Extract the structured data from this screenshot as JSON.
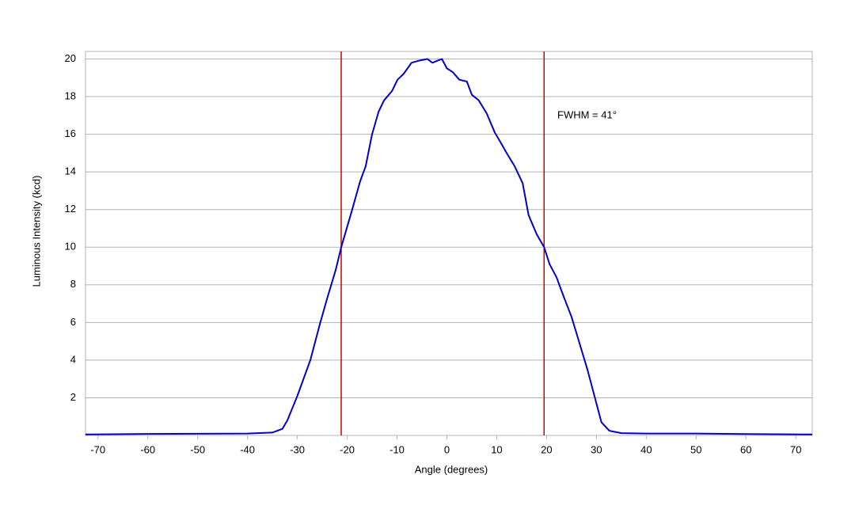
{
  "chart_data": {
    "type": "line",
    "x_label": "Angle (degrees)",
    "y_label": "Luminous Intensity (kcd)",
    "x": [
      -72.5,
      -60,
      -50,
      -40,
      -35,
      -33,
      -32,
      -30,
      -27.4,
      -25.4,
      -24,
      -22.3,
      -21.2,
      -19,
      -17.4,
      -16.3,
      -15,
      -13.7,
      -12.6,
      -11,
      -9.9,
      -8.7,
      -7.1,
      -5.8,
      -3.9,
      -2.9,
      -2,
      -1,
      0,
      1.2,
      2.5,
      4,
      5,
      6.4,
      8,
      9.6,
      10.7,
      12,
      13.6,
      15.2,
      16.4,
      18,
      19.5,
      20.6,
      22,
      23.4,
      25,
      26.6,
      28.2,
      29.8,
      31,
      32.6,
      35,
      40,
      50,
      60,
      73.3
    ],
    "series": [
      {
        "color": "#0000cc",
        "values": [
          0.05,
          0.08,
          0.09,
          0.1,
          0.15,
          0.35,
          0.8,
          2.1,
          4.0,
          6.0,
          7.3,
          8.8,
          10,
          12,
          13.5,
          14.3,
          16,
          17.2,
          17.8,
          18.3,
          18.9,
          19.2,
          19.8,
          19.9,
          20,
          19.8,
          19.9,
          20,
          19.5,
          19.3,
          18.9,
          18.8,
          18.1,
          17.8,
          17.1,
          16.1,
          15.6,
          15,
          14.3,
          13.4,
          11.7,
          10.7,
          10,
          9.1,
          8.4,
          7.4,
          6.3,
          4.9,
          3.5,
          1.9,
          0.7,
          0.25,
          0.12,
          0.1,
          0.1,
          0.07,
          0.05
        ]
      }
    ],
    "vlines": [
      {
        "x": -21.2,
        "color": "#cc0000"
      },
      {
        "x": 19.5,
        "color": "#cc0000"
      }
    ],
    "annotation": "FWHM = 41°",
    "xlim": [
      -72.5,
      73.3
    ],
    "ylim": [
      0,
      20.4
    ],
    "xticks": [
      -70,
      -60,
      -50,
      -40,
      -30,
      -20,
      -10,
      0,
      10,
      20,
      30,
      40,
      50,
      60,
      70
    ],
    "yticks": [
      2,
      4,
      6,
      8,
      10,
      12,
      14,
      16,
      18,
      20
    ],
    "grid": true
  }
}
